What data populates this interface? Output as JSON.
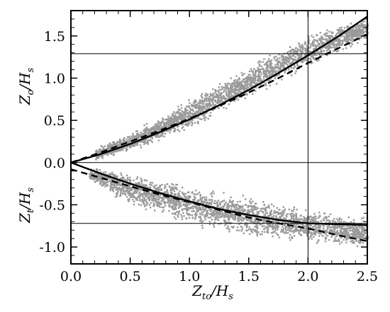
{
  "chart_data": {
    "type": "scatter",
    "xlabel": {
      "main": "Z",
      "sub": "to",
      "tail": "/H",
      "tail_sub": "s"
    },
    "ylabel_upper": {
      "main": "Z",
      "sub": "o",
      "tail": "/H",
      "tail_sub": "s"
    },
    "ylabel_lower": {
      "main": "Z",
      "sub": "t",
      "tail": "/H",
      "tail_sub": "s"
    },
    "xlim": [
      0.0,
      2.5
    ],
    "ylim": [
      -1.2,
      1.8
    ],
    "x_ticks": [
      "0.0",
      "0.5",
      "1.0",
      "1.5",
      "2.0",
      "2.5"
    ],
    "x_tick_values": [
      0.0,
      0.5,
      1.0,
      1.5,
      2.0,
      2.5
    ],
    "y_ticks": [
      "1.5",
      "1.0",
      "0.5",
      "0.0",
      "-0.5",
      "-1.0"
    ],
    "y_tick_values": [
      1.5,
      1.0,
      0.5,
      0.0,
      -0.5,
      -1.0
    ],
    "reference_lines": {
      "horizontal": [
        1.29,
        0.0,
        -0.72
      ],
      "vertical": [
        2.0
      ]
    },
    "scatter_color": "#9a9a9a",
    "series": [
      {
        "style": "solid",
        "x": [
          0.0,
          0.25,
          0.5,
          0.75,
          1.0,
          1.25,
          1.5,
          1.75,
          2.0,
          2.25,
          2.5
        ],
        "y": [
          0.0,
          0.1,
          0.22,
          0.36,
          0.51,
          0.68,
          0.86,
          1.06,
          1.27,
          1.49,
          1.73
        ]
      },
      {
        "style": "dashed",
        "x": [
          0.0,
          0.25,
          0.5,
          0.75,
          1.0,
          1.25,
          1.5,
          1.75,
          2.0,
          2.25,
          2.5
        ],
        "y": [
          0.0,
          0.12,
          0.25,
          0.38,
          0.52,
          0.67,
          0.83,
          1.0,
          1.18,
          1.35,
          1.52
        ]
      },
      {
        "style": "solid",
        "x": [
          0.0,
          0.25,
          0.5,
          0.75,
          1.0,
          1.25,
          1.5,
          1.75,
          2.0,
          2.25,
          2.5
        ],
        "y": [
          0.0,
          -0.13,
          -0.25,
          -0.36,
          -0.46,
          -0.55,
          -0.62,
          -0.68,
          -0.72,
          -0.73,
          -0.74
        ]
      },
      {
        "style": "dashed",
        "x": [
          0.0,
          0.25,
          0.5,
          0.75,
          1.0,
          1.25,
          1.5,
          1.75,
          2.0,
          2.25,
          2.5
        ],
        "y": [
          -0.08,
          -0.18,
          -0.28,
          -0.38,
          -0.47,
          -0.56,
          -0.65,
          -0.72,
          -0.78,
          -0.86,
          -0.93
        ]
      }
    ],
    "scatter_bands": [
      {
        "x": [
          0.2,
          0.5,
          0.8,
          1.1,
          1.4,
          1.7,
          2.0,
          2.3,
          2.5
        ],
        "y_low": [
          0.03,
          0.13,
          0.28,
          0.46,
          0.68,
          0.9,
          1.1,
          1.33,
          1.46
        ],
        "y_high": [
          0.18,
          0.38,
          0.62,
          0.87,
          1.1,
          1.33,
          1.55,
          1.68,
          1.72
        ]
      },
      {
        "x": [
          0.15,
          0.4,
          0.7,
          1.0,
          1.3,
          1.6,
          1.9,
          2.2,
          2.5
        ],
        "y_low": [
          -0.2,
          -0.45,
          -0.62,
          -0.74,
          -0.85,
          -0.92,
          -0.96,
          -1.0,
          -1.02
        ],
        "y_high": [
          -0.05,
          -0.07,
          -0.14,
          -0.22,
          -0.31,
          -0.4,
          -0.49,
          -0.57,
          -0.62
        ]
      }
    ]
  }
}
